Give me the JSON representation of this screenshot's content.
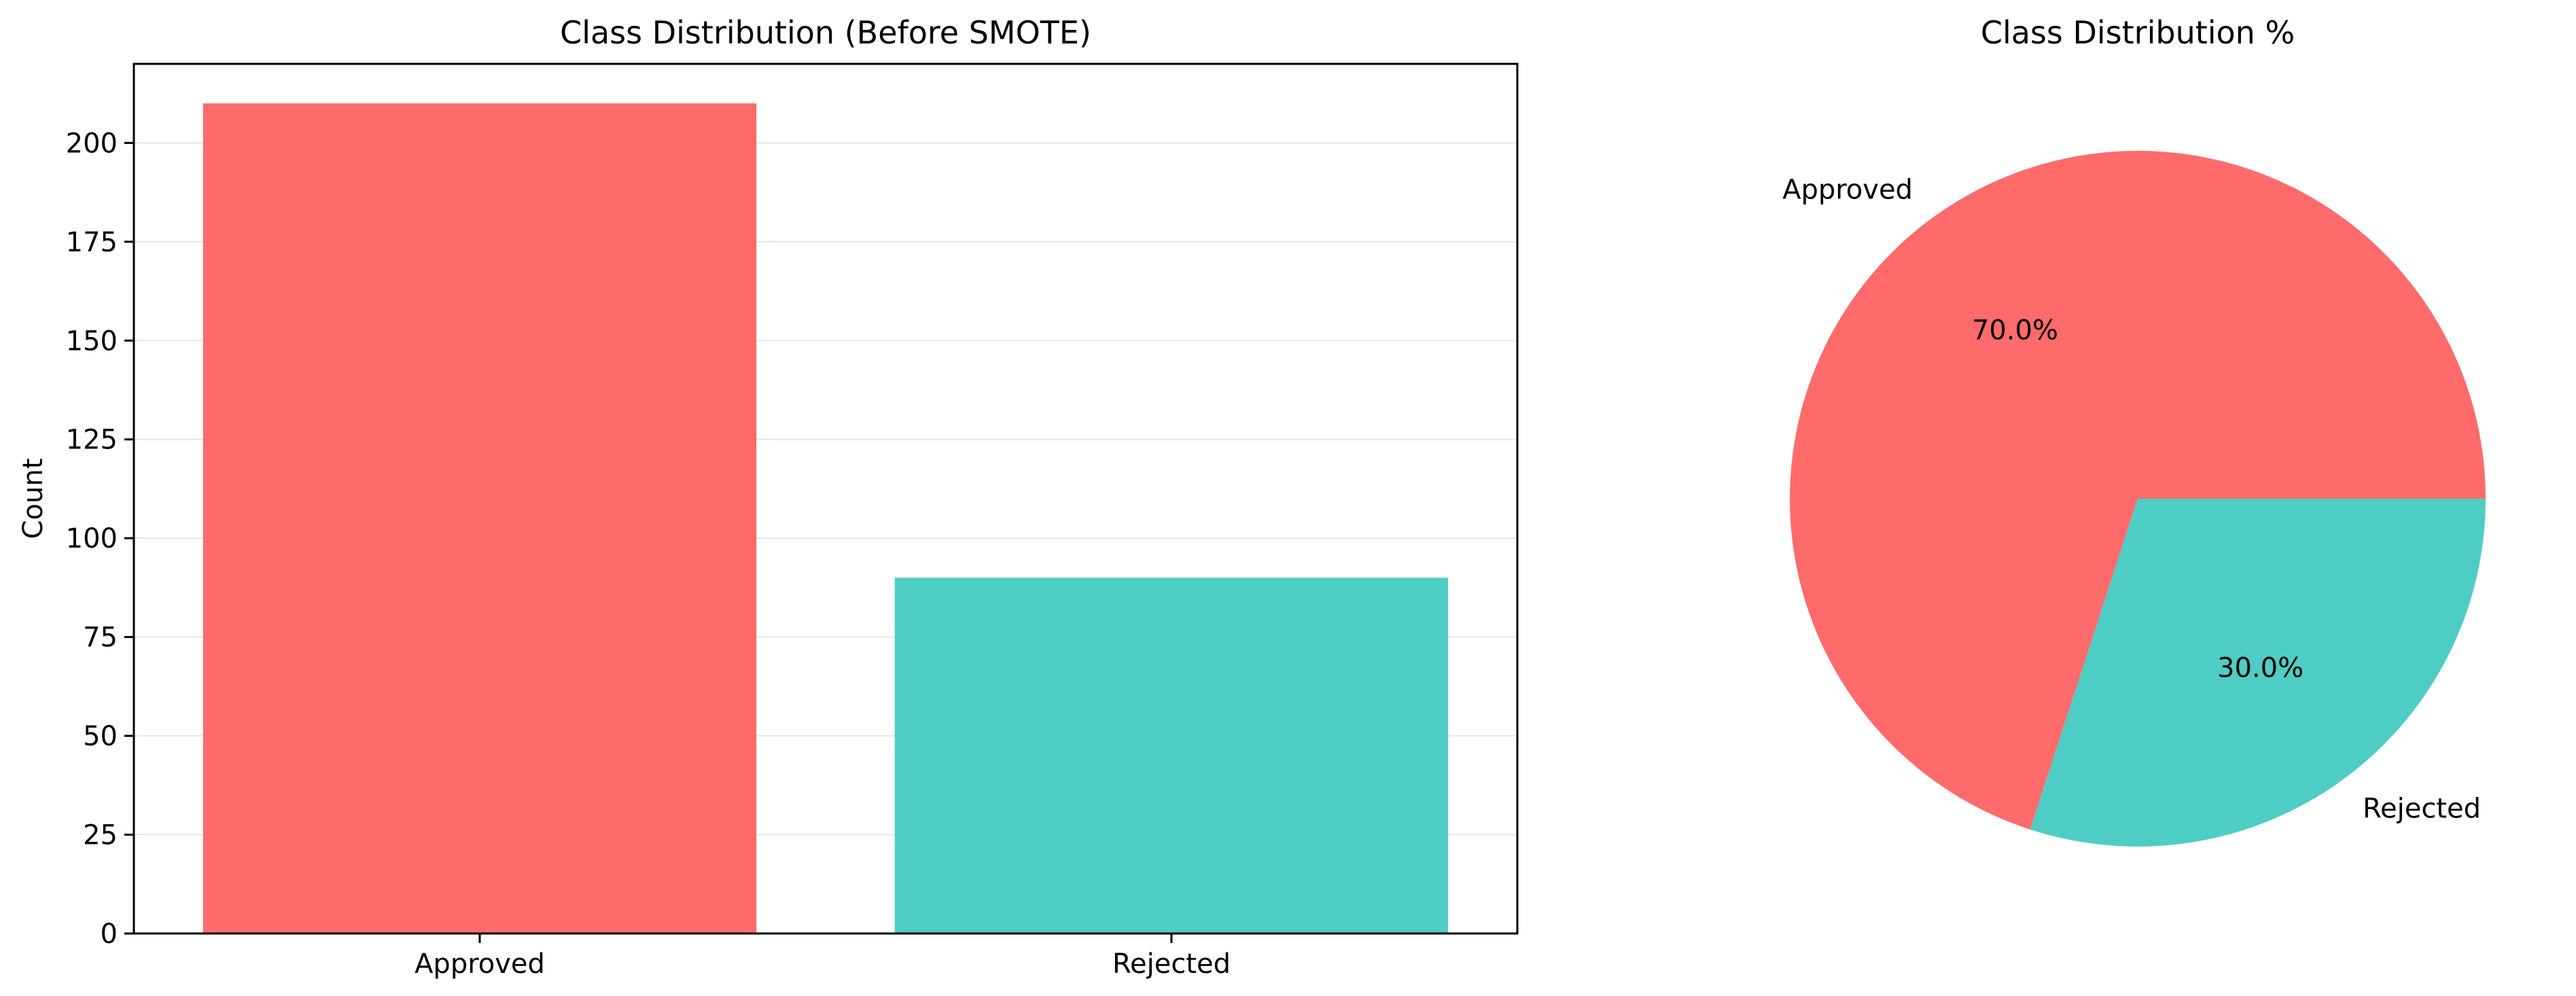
{
  "chart_data": [
    {
      "type": "bar",
      "title": "Class Distribution (Before SMOTE)",
      "xlabel": "",
      "ylabel": "Count",
      "categories": [
        "Approved",
        "Rejected"
      ],
      "values": [
        210,
        90
      ],
      "colors": [
        "#ff6b6b",
        "#4ecdc4"
      ],
      "ylim": [
        0,
        220
      ],
      "yticks": [
        0,
        25,
        50,
        75,
        100,
        125,
        150,
        175,
        200
      ],
      "grid": "y"
    },
    {
      "type": "pie",
      "title": "Class Distribution %",
      "labels": [
        "Approved",
        "Rejected"
      ],
      "values": [
        70.0,
        30.0
      ],
      "autopct": [
        "70.0%",
        "30.0%"
      ],
      "colors": [
        "#ff6b6b",
        "#4ecdc4"
      ]
    }
  ]
}
